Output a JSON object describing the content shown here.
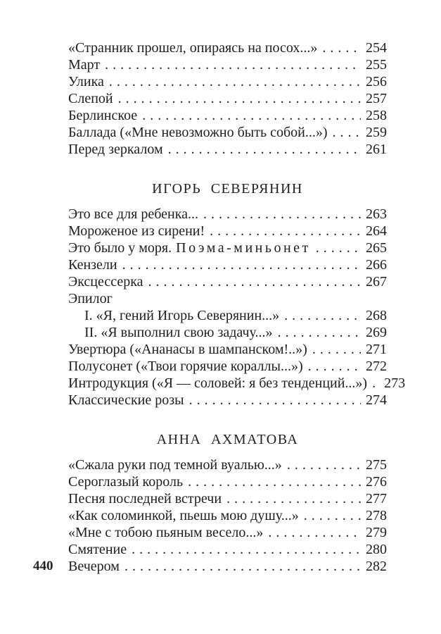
{
  "page": {
    "folio": "440"
  },
  "sections": [
    {
      "heading": "",
      "entries": [
        {
          "title": "«Странник прошел, опираясь на посох...»",
          "page": "254"
        },
        {
          "title": "Март",
          "page": "255"
        },
        {
          "title": "Улика",
          "page": "256"
        },
        {
          "title": "Слепой",
          "page": "257"
        },
        {
          "title": "Берлинское",
          "page": "258"
        },
        {
          "title": "Баллада («Мне невозможно быть собой...»)",
          "page": "259"
        },
        {
          "title": "Перед зеркалом",
          "page": "261"
        }
      ]
    },
    {
      "heading": "ИГОРЬ СЕВЕРЯНИН",
      "entries": [
        {
          "title": "Это все для ребенка...",
          "page": "263"
        },
        {
          "title": "Мороженое из сирени!",
          "page": "264"
        },
        {
          "title": "Это было у моря.",
          "spaced_suffix": "Поэма-миньонет",
          "page": "265"
        },
        {
          "title": "Кензели",
          "page": "266"
        },
        {
          "title": "Эксцессерка",
          "page": "267"
        },
        {
          "title": "Эпилог"
        },
        {
          "title": "I. «Я, гений Игорь Северянин...»",
          "page": "268",
          "indent": true
        },
        {
          "title": "II. «Я выполнил свою задачу...»",
          "page": "269",
          "indent": true
        },
        {
          "title": "Увертюра («Ананасы в шампанском!..»)",
          "page": "271"
        },
        {
          "title": "Полусонет («Твои горячие кораллы...»)",
          "page": "272"
        },
        {
          "title": "Интродукция («Я — соловей: я без тенденций...»)",
          "page": "273"
        },
        {
          "title": "Классические розы",
          "page": "274"
        }
      ]
    },
    {
      "heading": "АННА АХМАТОВА",
      "entries": [
        {
          "title": "«Сжала руки под темной вуалью...»",
          "page": "275"
        },
        {
          "title": "Сероглазый король",
          "page": "276"
        },
        {
          "title": "Песня последней встречи",
          "page": "277"
        },
        {
          "title": "«Как соломинкой, пьешь мою душу...»",
          "page": "278"
        },
        {
          "title": "«Мне с тобою пьяным весело...»",
          "page": "279"
        },
        {
          "title": "Смятение",
          "page": "280"
        },
        {
          "title": "Вечером",
          "page": "282"
        }
      ]
    }
  ]
}
